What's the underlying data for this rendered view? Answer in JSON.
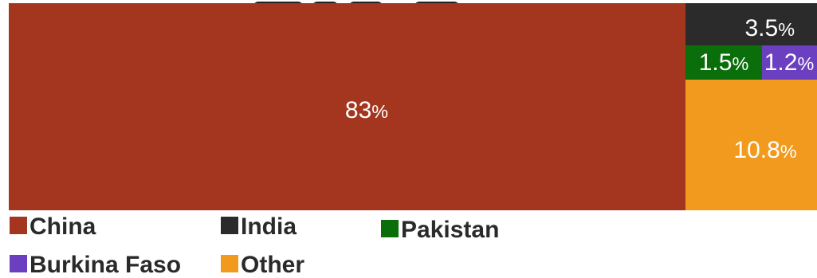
{
  "chart_data": {
    "type": "treemap",
    "title": "",
    "unit": "%",
    "series": [
      {
        "name": "China",
        "value": 83,
        "label": "83",
        "color": "#a4361f"
      },
      {
        "name": "India",
        "value": 3.5,
        "label": "3.5",
        "color": "#2b2b2b"
      },
      {
        "name": "Pakistan",
        "value": 1.5,
        "label": "1.5",
        "color": "#0a6e0a"
      },
      {
        "name": "Burkina Faso",
        "value": 1.2,
        "label": "1.2",
        "color": "#6b3fbf"
      },
      {
        "name": "Other",
        "value": 10.8,
        "label": "10.8",
        "color": "#f29a1e"
      }
    ],
    "legend": {
      "placement": "bottom",
      "items": [
        "China",
        "India",
        "Pakistan",
        "Burkina Faso",
        "Other"
      ]
    }
  }
}
